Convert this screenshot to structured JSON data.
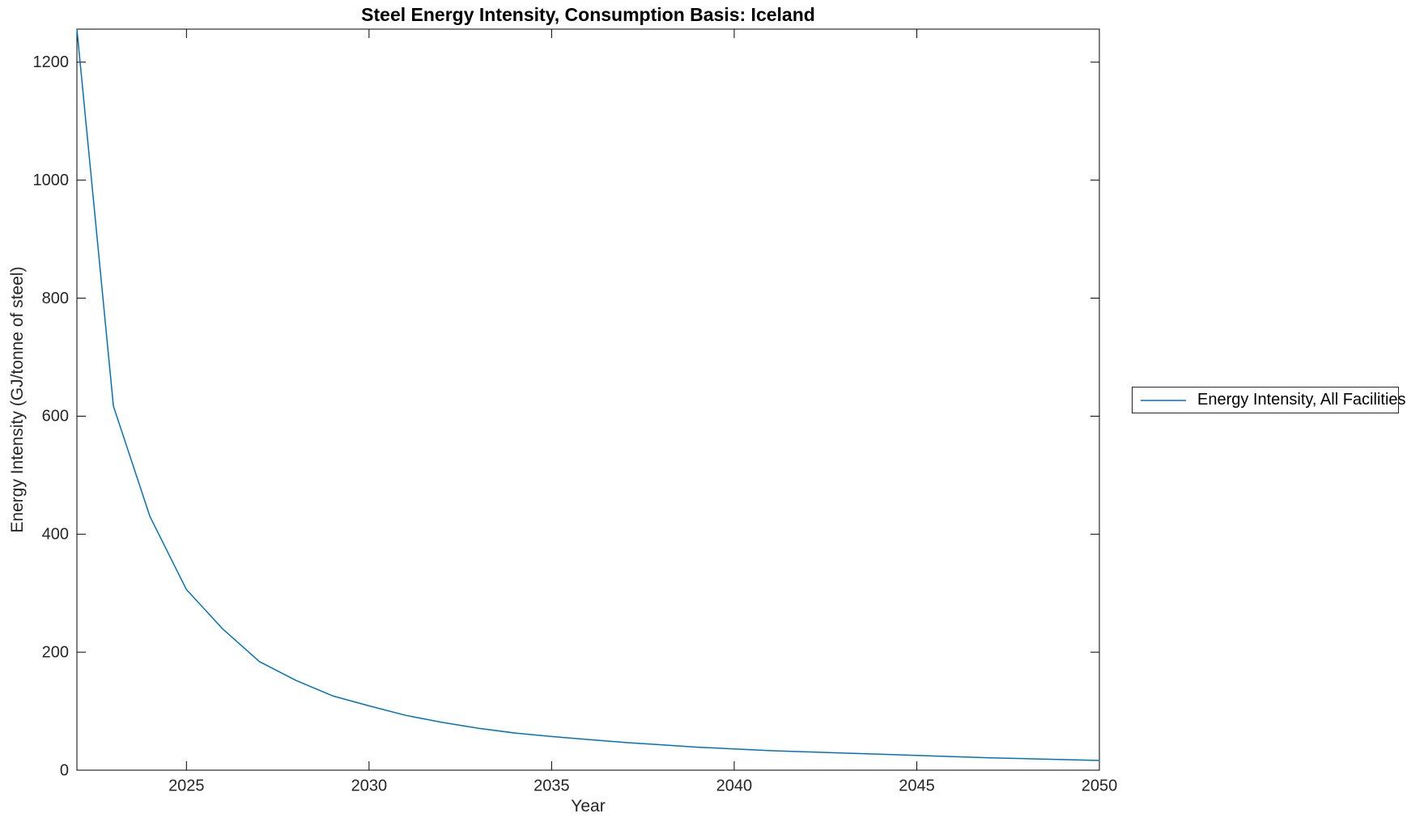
{
  "title": "Steel Energy Intensity, Consumption Basis: Iceland",
  "axes": {
    "xlabel": "Year",
    "ylabel": "Energy Intensity (GJ/tonne of steel)"
  },
  "colors": {
    "line_blue": "#0072BD",
    "axis": "#000000",
    "tick_text": "#262626"
  },
  "legend": {
    "position": "right-outside-center",
    "items": [
      {
        "label": "Energy Intensity, All Facilities",
        "color": "#0072BD"
      }
    ]
  },
  "chart_data": {
    "type": "line",
    "title": "Steel Energy Intensity, Consumption Basis: Iceland",
    "xlabel": "Year",
    "ylabel": "Energy Intensity (GJ/tonne of steel)",
    "xlim": [
      2022,
      2050
    ],
    "ylim": [
      0,
      1256
    ],
    "xticks": [
      2025,
      2030,
      2035,
      2040,
      2045,
      2050
    ],
    "yticks": [
      0,
      200,
      400,
      600,
      800,
      1000,
      1200
    ],
    "grid": false,
    "legend_position": "right-outside",
    "series": [
      {
        "name": "Energy Intensity, All Facilities",
        "color": "#0072BD",
        "x": [
          2022,
          2023,
          2024,
          2025,
          2026,
          2027,
          2028,
          2029,
          2030,
          2031,
          2032,
          2033,
          2034,
          2035,
          2036,
          2037,
          2038,
          2039,
          2040,
          2041,
          2042,
          2043,
          2044,
          2045,
          2046,
          2047,
          2048,
          2049,
          2050
        ],
        "y": [
          1256,
          617,
          430,
          306,
          239,
          184,
          152,
          126,
          109,
          93,
          81,
          71,
          63,
          57,
          52,
          47,
          43,
          39,
          36,
          33,
          31,
          29,
          27,
          25,
          23,
          21,
          19.5,
          18,
          16.5
        ]
      }
    ]
  }
}
